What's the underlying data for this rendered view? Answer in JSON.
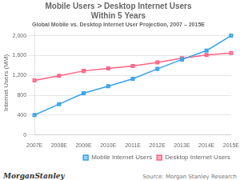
{
  "chart_data": {
    "type": "line",
    "title": "Mobile Users > Desktop Internet Users\nWithin 5 Years",
    "subtitle": "Global Mobile vs. Desktop Internet User Projection, 2007 – 2015E",
    "ylabel": "Internet Users (MM)",
    "categories": [
      "2007E",
      "2008E",
      "2009E",
      "2010E",
      "2011E",
      "2012E",
      "2013E",
      "2014E",
      "2015E"
    ],
    "series": [
      {
        "name": "Mobile Internet Users",
        "values": [
          400,
          620,
          840,
          980,
          1130,
          1330,
          1520,
          1700,
          2000
        ]
      },
      {
        "name": "Desktop Internet Users",
        "values": [
          1100,
          1190,
          1290,
          1340,
          1390,
          1460,
          1545,
          1610,
          1650
        ]
      }
    ],
    "ylim": [
      0,
      2100
    ],
    "yticks": [
      0,
      400,
      800,
      {
        "value": 1200,
        "label": "1,200"
      },
      {
        "value": 1600,
        "label": "1,600"
      },
      {
        "value": 2000,
        "label": "2,000"
      }
    ],
    "grid": true,
    "legend": "lower right",
    "marker": "square",
    "annotations": [
      "MorganStanley",
      "Source: Morgan Stanley Research"
    ]
  }
}
